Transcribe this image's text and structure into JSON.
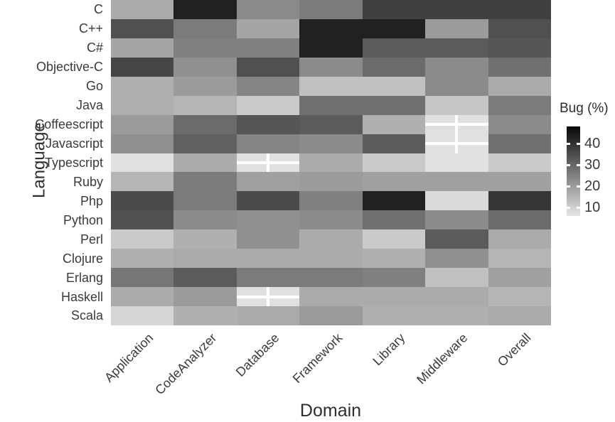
{
  "axes": {
    "x_label": "Domain",
    "y_label": "Language"
  },
  "legend": {
    "title": "Bug (%)",
    "ticks": [
      40,
      30,
      20,
      10
    ],
    "value_min": 6,
    "value_max": 48,
    "low_color": "#e5e5e5",
    "high_color": "#070707"
  },
  "chart_data": {
    "type": "heatmap",
    "title": "",
    "xlabel": "Domain",
    "ylabel": "Language",
    "x_categories": [
      "Application",
      "CodeAnalyzer",
      "Database",
      "Framework",
      "Library",
      "Middleware",
      "Overall"
    ],
    "y_categories": [
      "C",
      "C++",
      "C#",
      "Objective-C",
      "Go",
      "Java",
      "Coffeescript",
      "Javascript",
      "Typescript",
      "Ruby",
      "Php",
      "Python",
      "Perl",
      "Clojure",
      "Erlang",
      "Haskell",
      "Scala"
    ],
    "values_unit": "bug_percent",
    "values": [
      [
        17,
        43,
        23,
        26,
        37,
        37,
        37
      ],
      [
        34,
        26,
        18,
        43,
        43,
        20,
        34
      ],
      [
        18,
        25,
        25,
        43,
        32,
        32,
        33
      ],
      [
        36,
        22,
        34,
        23,
        29,
        23,
        28
      ],
      [
        16,
        20,
        24,
        13,
        13,
        23,
        17
      ],
      [
        16,
        15,
        11,
        28,
        28,
        12,
        26
      ],
      [
        20,
        29,
        33,
        32,
        16,
        7,
        23
      ],
      [
        22,
        31,
        24,
        23,
        32,
        7,
        28
      ],
      [
        7,
        17,
        7,
        17,
        11,
        7,
        11
      ],
      [
        15,
        26,
        19,
        20,
        19,
        19,
        19
      ],
      [
        35,
        26,
        35,
        25,
        43,
        8,
        39
      ],
      [
        34,
        23,
        22,
        23,
        28,
        23,
        29
      ],
      [
        11,
        16,
        22,
        17,
        11,
        32,
        17
      ],
      [
        16,
        17,
        17,
        17,
        16,
        22,
        15
      ],
      [
        27,
        32,
        26,
        26,
        25,
        13,
        19
      ],
      [
        17,
        20,
        7,
        17,
        17,
        17,
        15
      ],
      [
        9,
        16,
        17,
        20,
        16,
        16,
        17
      ]
    ],
    "cross_marked_cells": [
      [
        "Coffeescript",
        "Middleware"
      ],
      [
        "Javascript",
        "Middleware"
      ],
      [
        "Typescript",
        "Database"
      ],
      [
        "Haskell",
        "Database"
      ]
    ],
    "color_scale": "grayscale, light = low bug %, black = high bug %",
    "grid": "off",
    "legend_position": "right"
  }
}
